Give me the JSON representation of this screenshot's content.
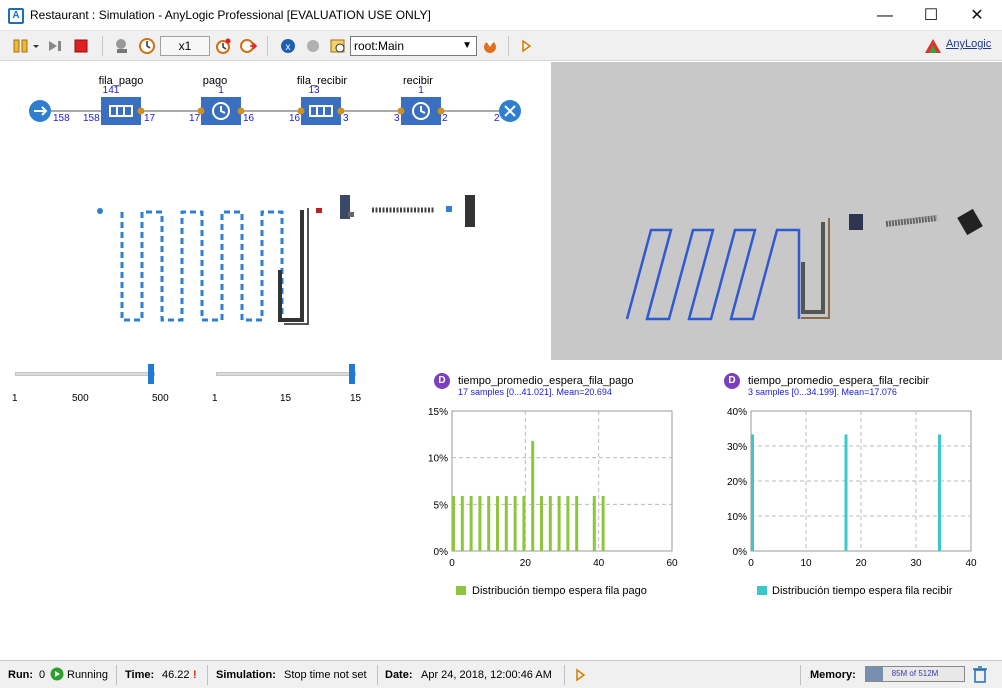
{
  "window": {
    "title": "Restaurant : Simulation - AnyLogic Professional [EVALUATION USE ONLY]",
    "minimize": "—",
    "maximize": "☐",
    "close": "✕"
  },
  "toolbar": {
    "speed": "x1",
    "experiment_root": "root:Main",
    "brand": "AnyLogic"
  },
  "flowchart": {
    "blocks": [
      {
        "label": "fila_pago",
        "count": "141",
        "type": "queue"
      },
      {
        "label": "pago",
        "count": "1",
        "type": "delay"
      },
      {
        "label": "fila_recibir",
        "count": "13",
        "type": "queue"
      },
      {
        "label": "recibir",
        "count": "1",
        "type": "delay"
      }
    ],
    "port_counts": [
      "158",
      "158",
      "17",
      "17",
      "16",
      "16",
      "3",
      "3",
      "2",
      "2"
    ]
  },
  "sliders": [
    {
      "min": "1",
      "mid": "500",
      "value": "500",
      "fill": 0.97
    },
    {
      "min": "1",
      "mid": "15",
      "value": "15",
      "fill": 0.97
    }
  ],
  "charts": {
    "left": {
      "title": "tiempo_promedio_espera_fila_pago",
      "subtitle": "17 samples [0...41.021]. Mean=20.694",
      "legend": "Distribución tiempo espera fila pago",
      "color": "#8cc63f"
    },
    "right": {
      "title": "tiempo_promedio_espera_fila_recibir",
      "subtitle": "3 samples [0...34.199]. Mean=17.076",
      "legend": "Distribución tiempo espera fila recibir",
      "color": "#3cc8c8"
    }
  },
  "chart_data": [
    {
      "type": "bar",
      "title": "tiempo_promedio_espera_fila_pago",
      "xlim": [
        0,
        60
      ],
      "ylim": [
        0,
        15
      ],
      "x_ticks": [
        "0",
        "20",
        "40",
        "60"
      ],
      "y_ticks": [
        "0%",
        "5%",
        "10%",
        "15%"
      ],
      "grid": true,
      "legend_position": "bottom",
      "series": [
        {
          "name": "Distribución tiempo espera fila pago",
          "x": [
            0,
            2.4,
            4.8,
            7.2,
            9.6,
            12,
            14.4,
            16.8,
            19.2,
            21.6,
            24,
            26.4,
            28.8,
            31.2,
            33.6,
            36,
            38.4,
            40.8
          ],
          "values": [
            5.9,
            5.9,
            5.9,
            5.9,
            5.9,
            5.9,
            5.9,
            5.9,
            5.9,
            11.8,
            5.9,
            5.9,
            5.9,
            5.9,
            5.9,
            0,
            5.9,
            5.9
          ]
        }
      ]
    },
    {
      "type": "bar",
      "title": "tiempo_promedio_espera_fila_recibir",
      "xlim": [
        0,
        40
      ],
      "ylim": [
        0,
        40
      ],
      "x_ticks": [
        "0",
        "10",
        "20",
        "30",
        "40"
      ],
      "y_ticks": [
        "0%",
        "10%",
        "20%",
        "30%",
        "40%"
      ],
      "grid": true,
      "legend_position": "bottom",
      "series": [
        {
          "name": "Distribución tiempo espera fila recibir",
          "x": [
            0,
            17,
            34
          ],
          "values": [
            33.3,
            33.3,
            33.3
          ]
        }
      ]
    }
  ],
  "status": {
    "run_label": "Run:",
    "run_value": "0",
    "running": "Running",
    "time_label": "Time:",
    "time_value": "46.22",
    "sim_label": "Simulation:",
    "sim_value": "Stop time not set",
    "date_label": "Date:",
    "date_value": "Apr 24, 2018, 12:00:46 AM",
    "memory_label": "Memory:",
    "memory_value": "85M of 512M",
    "memory_fraction": 0.17
  }
}
